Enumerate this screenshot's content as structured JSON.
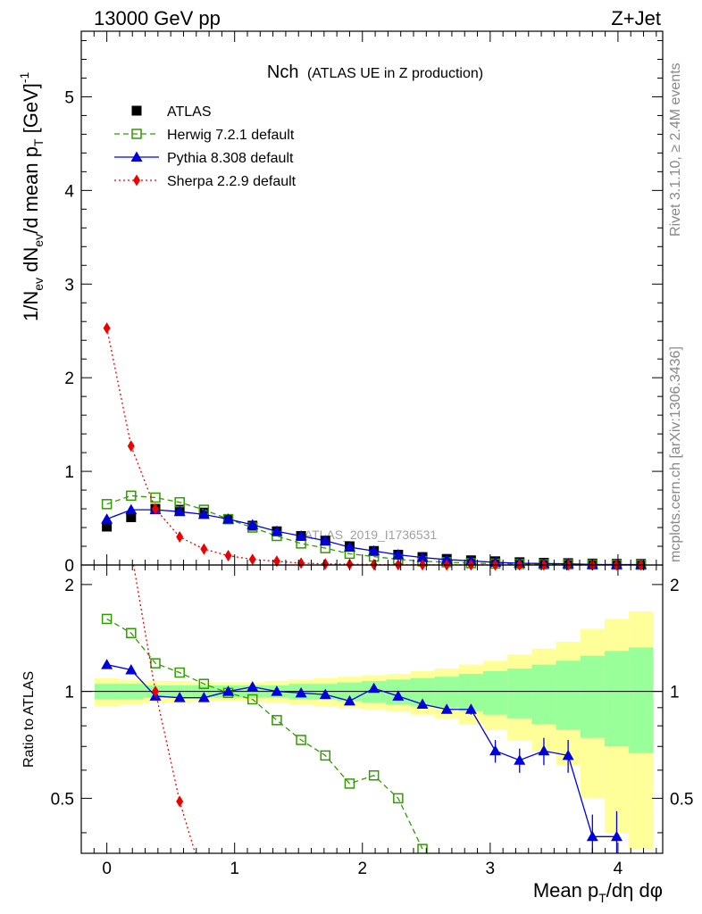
{
  "header": {
    "left": "13000 GeV pp",
    "right": "Z+Jet"
  },
  "side": {
    "rivet": "Rivet 3.1.10, ≥ 2.4M events",
    "mcplots": "mcplots.cern.ch [arXiv:1306.3436]"
  },
  "watermark": "ATLAS_2019_I1736531",
  "chart_data": {
    "type": "scatter",
    "title": "Nch",
    "subtitle": "(ATLAS UE in Z production)",
    "xlabel": "Mean p_T/dη dφ",
    "ylabel": "1/N_ev dN_ev/d mean p_T [GeV]^-1",
    "ratio_ylabel": "Ratio to ATLAS",
    "xlim": [
      -0.2,
      4.35
    ],
    "ylim": [
      0,
      5.7
    ],
    "ratio_ylim": [
      0.35,
      2.27
    ],
    "x_ticks": [
      "0",
      "1",
      "2",
      "3",
      "4"
    ],
    "y_ticks": [
      "0",
      "1",
      "2",
      "3",
      "4",
      "5"
    ],
    "ratio_ticks": [
      "0.5",
      "1",
      "2"
    ],
    "legend_position": "top-left",
    "x": [
      0,
      0.19,
      0.38,
      0.57,
      0.76,
      0.95,
      1.14,
      1.33,
      1.52,
      1.71,
      1.9,
      2.09,
      2.28,
      2.47,
      2.66,
      2.85,
      3.04,
      3.23,
      3.42,
      3.61,
      3.8,
      3.99,
      4.18
    ],
    "series": [
      {
        "name": "ATLAS",
        "color": "#000000",
        "marker": "square",
        "values": [
          0.41,
          0.51,
          0.6,
          0.59,
          0.56,
          0.49,
          0.42,
          0.36,
          0.31,
          0.26,
          0.2,
          0.15,
          0.11,
          0.085,
          0.065,
          0.05,
          0.04,
          0.03,
          0.024,
          0.02,
          0.016,
          0.013,
          0.012
        ]
      },
      {
        "name": "Herwig 7.2.1 default",
        "color": "#339900",
        "marker": "open-square",
        "values": [
          0.65,
          0.74,
          0.72,
          0.67,
          0.59,
          0.49,
          0.4,
          0.31,
          0.23,
          0.18,
          0.12,
          0.09,
          0.06,
          0.04,
          0.03,
          0.02,
          0.015,
          0.01,
          0.008,
          0.006,
          0.005,
          0.004,
          0.003
        ],
        "ratio": [
          1.6,
          1.46,
          1.2,
          1.13,
          1.05,
          0.99,
          0.95,
          0.83,
          0.73,
          0.66,
          0.55,
          0.58,
          0.5,
          0.36
        ]
      },
      {
        "name": "Pythia 8.308 default",
        "color": "#0000dd",
        "marker": "triangle",
        "values": [
          0.49,
          0.59,
          0.59,
          0.57,
          0.54,
          0.49,
          0.43,
          0.36,
          0.31,
          0.26,
          0.19,
          0.15,
          0.11,
          0.08,
          0.058,
          0.044,
          0.028,
          0.019,
          0.016,
          0.013,
          0.006,
          0.005,
          0.004
        ],
        "ratio": [
          1.19,
          1.15,
          0.97,
          0.96,
          0.96,
          1.0,
          1.03,
          1.0,
          0.99,
          0.98,
          0.94,
          1.02,
          0.97,
          0.92,
          0.89,
          0.89,
          0.68,
          0.64,
          0.68,
          0.66,
          0.39,
          0.39
        ],
        "ratio_err": [
          0,
          0,
          0,
          0,
          0,
          0,
          0,
          0,
          0,
          0,
          0,
          0,
          0,
          0.02,
          0.02,
          0.03,
          0.05,
          0.05,
          0.06,
          0.07,
          0.06,
          0.07
        ]
      },
      {
        "name": "Sherpa 2.2.9 default",
        "color": "#ee0000",
        "marker": "diamond",
        "values": [
          2.53,
          1.27,
          0.6,
          0.3,
          0.17,
          0.1,
          0.06,
          0.04,
          0.02,
          0.012,
          0.008,
          0.005,
          0.003,
          0.002,
          0.001,
          0.001,
          0,
          0,
          0,
          0,
          0,
          0,
          0
        ],
        "ratio": [
          6.17,
          2.49,
          1.0,
          0.49,
          0.29
        ]
      }
    ],
    "bands": {
      "inner_color": "#99ff99",
      "outer_color": "#ffff99",
      "inner_halfwidth": [
        0.05,
        0.05,
        0.04,
        0.04,
        0.04,
        0.04,
        0.04,
        0.04,
        0.05,
        0.05,
        0.06,
        0.07,
        0.08,
        0.09,
        0.1,
        0.12,
        0.14,
        0.16,
        0.19,
        0.22,
        0.26,
        0.3,
        0.33
      ],
      "outer_halfwidth": [
        0.09,
        0.08,
        0.07,
        0.07,
        0.06,
        0.06,
        0.06,
        0.07,
        0.08,
        0.09,
        0.1,
        0.11,
        0.12,
        0.14,
        0.16,
        0.19,
        0.22,
        0.27,
        0.32,
        0.38,
        0.5,
        0.6,
        0.68
      ]
    }
  }
}
